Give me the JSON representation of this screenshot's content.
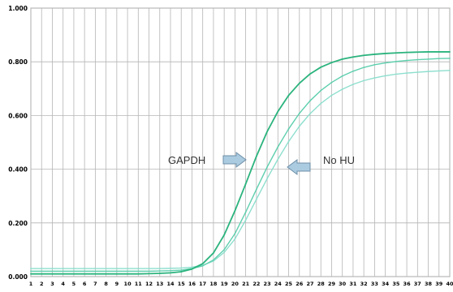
{
  "chart_data": {
    "type": "line",
    "title": "",
    "xlabel": "",
    "ylabel": "",
    "x": [
      1,
      2,
      3,
      4,
      5,
      6,
      7,
      8,
      9,
      10,
      11,
      12,
      13,
      14,
      15,
      16,
      17,
      18,
      19,
      20,
      21,
      22,
      23,
      24,
      25,
      26,
      27,
      28,
      29,
      30,
      31,
      32,
      33,
      34,
      35,
      36,
      37,
      38,
      39,
      40
    ],
    "x_ticks": [
      "1",
      "2",
      "3",
      "4",
      "5",
      "6",
      "7",
      "8",
      "9",
      "10",
      "11",
      "12",
      "13",
      "14",
      "15",
      "16",
      "17",
      "18",
      "19",
      "20",
      "21",
      "22",
      "23",
      "24",
      "25",
      "26",
      "27",
      "28",
      "29",
      "30",
      "31",
      "32",
      "33",
      "34",
      "35",
      "36",
      "37",
      "38",
      "39",
      "40"
    ],
    "y_ticks": [
      "0.000",
      "0.200",
      "0.400",
      "0.600",
      "0.800",
      "1.000"
    ],
    "xlim": [
      1,
      40
    ],
    "ylim": [
      0,
      1.0
    ],
    "grid": true,
    "series": [
      {
        "color": "#2bb37d",
        "values": [
          0.01,
          0.01,
          0.01,
          0.01,
          0.01,
          0.01,
          0.01,
          0.01,
          0.01,
          0.01,
          0.01,
          0.011,
          0.012,
          0.014,
          0.018,
          0.028,
          0.048,
          0.088,
          0.155,
          0.245,
          0.345,
          0.448,
          0.54,
          0.615,
          0.675,
          0.72,
          0.755,
          0.78,
          0.797,
          0.81,
          0.818,
          0.824,
          0.828,
          0.831,
          0.833,
          0.835,
          0.836,
          0.837,
          0.837,
          0.837
        ]
      },
      {
        "color": "#5fcfae",
        "values": [
          0.02,
          0.02,
          0.02,
          0.02,
          0.02,
          0.02,
          0.02,
          0.02,
          0.02,
          0.02,
          0.02,
          0.02,
          0.021,
          0.022,
          0.024,
          0.03,
          0.04,
          0.062,
          0.1,
          0.16,
          0.24,
          0.325,
          0.408,
          0.483,
          0.55,
          0.608,
          0.655,
          0.693,
          0.723,
          0.747,
          0.765,
          0.779,
          0.789,
          0.796,
          0.801,
          0.805,
          0.808,
          0.81,
          0.812,
          0.813
        ]
      },
      {
        "color": "#8edfce",
        "values": [
          0.03,
          0.03,
          0.03,
          0.03,
          0.03,
          0.03,
          0.03,
          0.03,
          0.03,
          0.03,
          0.03,
          0.03,
          0.03,
          0.031,
          0.032,
          0.035,
          0.042,
          0.058,
          0.09,
          0.14,
          0.21,
          0.288,
          0.365,
          0.437,
          0.503,
          0.56,
          0.607,
          0.645,
          0.675,
          0.698,
          0.716,
          0.73,
          0.74,
          0.748,
          0.754,
          0.758,
          0.761,
          0.764,
          0.766,
          0.768
        ]
      }
    ],
    "annotations": [
      {
        "text": "GAPDH"
      },
      {
        "text": "No HU"
      }
    ]
  }
}
